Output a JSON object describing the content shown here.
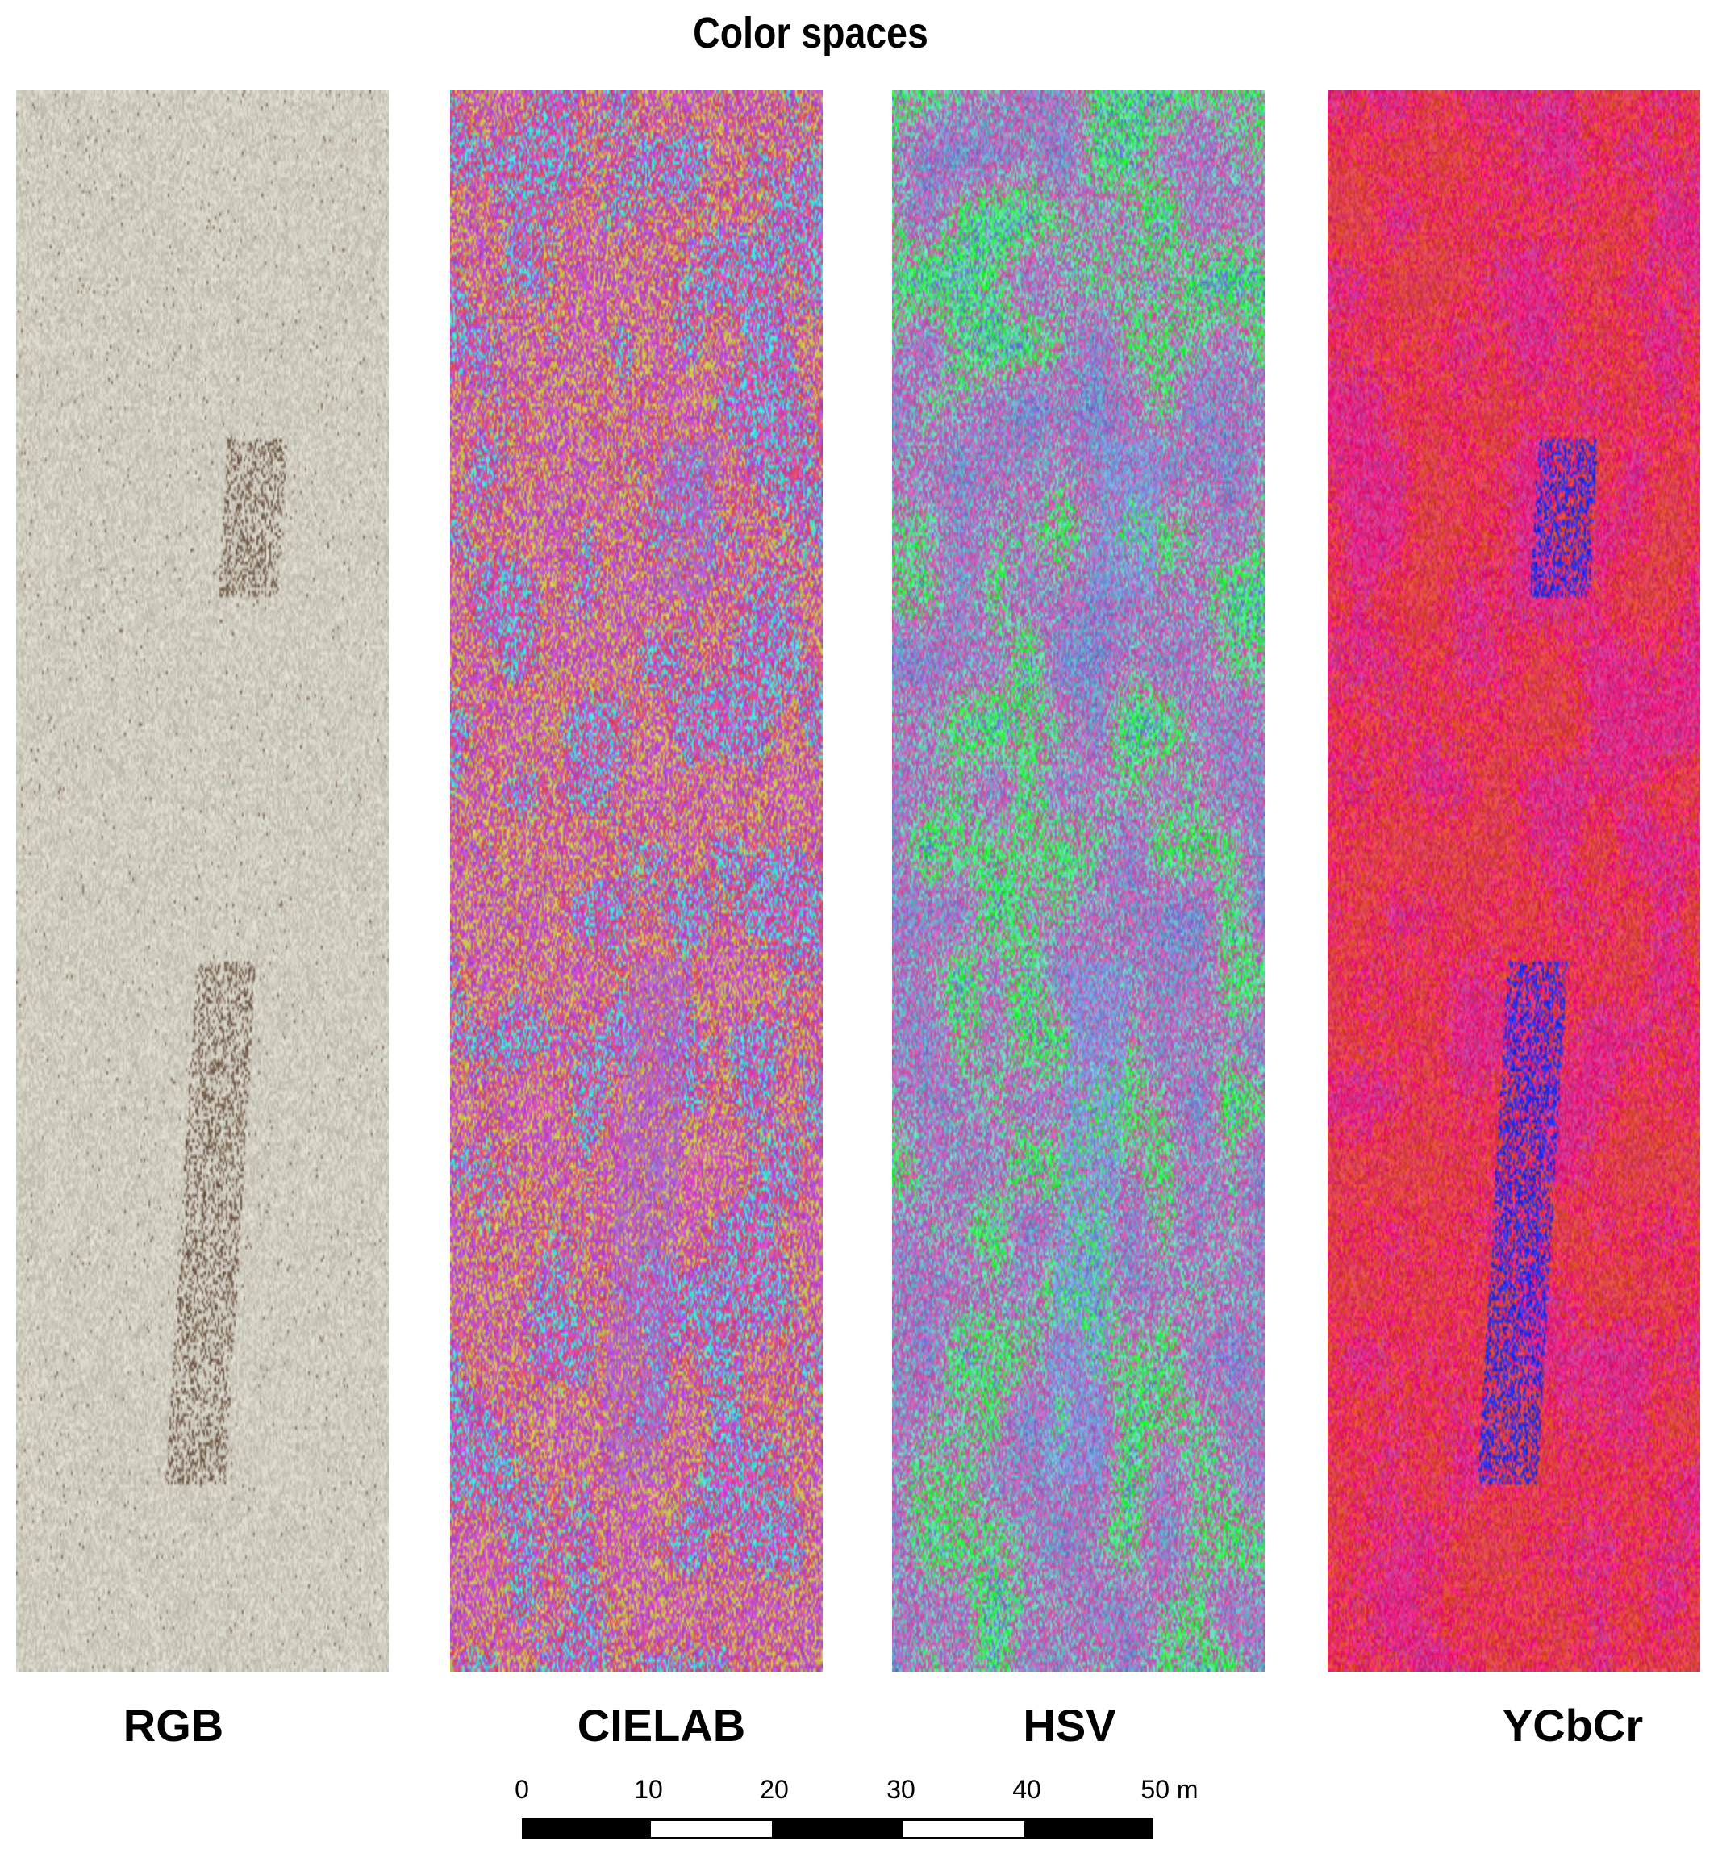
{
  "title": "Color spaces",
  "panels": [
    {
      "id": "rgb",
      "label": "RGB",
      "palette": [
        "#d6d3c8",
        "#cfccbf",
        "#c9c6b8",
        "#8b7565",
        "#6f5a4a"
      ]
    },
    {
      "id": "cielab",
      "label": "CIELAB",
      "palette": [
        "#e040d8",
        "#d34fb0",
        "#c8c24a",
        "#b44ce0",
        "#e0506e",
        "#3ee0d8",
        "#a96cc8"
      ]
    },
    {
      "id": "hsv",
      "label": "HSV",
      "palette": [
        "#6a7ad8",
        "#5fb6c6",
        "#a06ed0",
        "#d35aa8",
        "#66d6b8",
        "#2af23c",
        "#7a9ae0"
      ]
    },
    {
      "id": "ycbcr",
      "label": "YCbCr",
      "palette": [
        "#e02a6a",
        "#d8405a",
        "#e04a2a",
        "#f0167e",
        "#c83a9a",
        "#2230e8"
      ]
    }
  ],
  "scale_bar": {
    "ticks": [
      "0",
      "10",
      "20",
      "30",
      "40",
      "50 m"
    ]
  }
}
